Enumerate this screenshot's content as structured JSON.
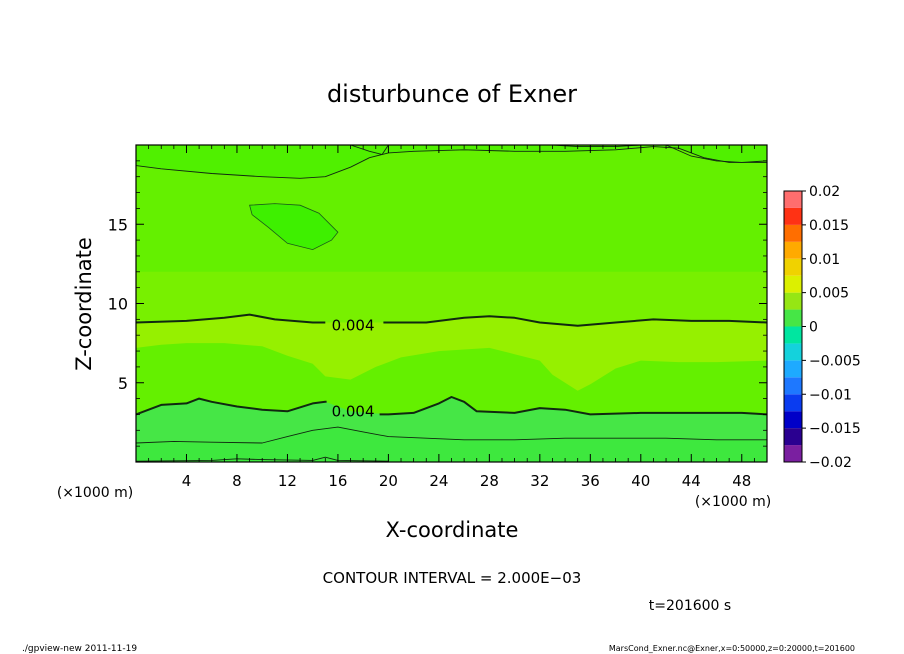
{
  "chart_data": {
    "type": "heatmap",
    "title": "disturbunce of Exner",
    "xlabel": "X-coordinate",
    "ylabel": "Z-coordinate",
    "x_unit_left": "(×1000 m)",
    "x_unit_right": "(×1000 m)",
    "xlim": [
      0,
      50
    ],
    "ylim": [
      0,
      20
    ],
    "x_ticks": [
      {
        "v": 4,
        "label": "4"
      },
      {
        "v": 8,
        "label": "8"
      },
      {
        "v": 12,
        "label": "12"
      },
      {
        "v": 16,
        "label": "16"
      },
      {
        "v": 20,
        "label": "20"
      },
      {
        "v": 24,
        "label": "24"
      },
      {
        "v": 28,
        "label": "28"
      },
      {
        "v": 32,
        "label": "32"
      },
      {
        "v": 36,
        "label": "36"
      },
      {
        "v": 40,
        "label": "40"
      },
      {
        "v": 44,
        "label": "44"
      },
      {
        "v": 48,
        "label": "48"
      }
    ],
    "y_ticks": [
      {
        "v": 5,
        "label": "5"
      },
      {
        "v": 10,
        "label": "10"
      },
      {
        "v": 15,
        "label": "15"
      }
    ],
    "colorbar": {
      "levels": [
        -0.02,
        -0.0175,
        -0.015,
        -0.0125,
        -0.01,
        -0.0075,
        -0.005,
        -0.0025,
        0,
        0.0025,
        0.005,
        0.0075,
        0.01,
        0.0125,
        0.015,
        0.0175,
        0.02
      ],
      "colors": [
        "#7a1fa0",
        "#2a0090",
        "#0000c8",
        "#0a3cf0",
        "#1e78ff",
        "#1eaaff",
        "#14d2dc",
        "#00e6a0",
        "#46e646",
        "#96e614",
        "#dcf000",
        "#f0d200",
        "#ffaa00",
        "#ff6e00",
        "#ff3214",
        "#ff6e6e",
        "#ffaaaa"
      ],
      "labels": [
        {
          "v": 0.02,
          "label": "0.02"
        },
        {
          "v": 0.015,
          "label": "0.015"
        },
        {
          "v": 0.01,
          "label": "0.01"
        },
        {
          "v": 0.005,
          "label": "0.005"
        },
        {
          "v": 0,
          "label": "0"
        },
        {
          "v": -0.005,
          "label": "−0.005"
        },
        {
          "v": -0.01,
          "label": "−0.01"
        },
        {
          "v": -0.015,
          "label": "−0.015"
        },
        {
          "v": -0.02,
          "label": "−0.02"
        }
      ]
    },
    "bands": [
      {
        "level": 0.0015,
        "color": "#46e646",
        "upper": [
          [
            0,
            1.2
          ],
          [
            3,
            1.3
          ],
          [
            6,
            1.25
          ],
          [
            10,
            1.2
          ],
          [
            12,
            1.6
          ],
          [
            14,
            2.0
          ],
          [
            16,
            2.2
          ],
          [
            18,
            1.9
          ],
          [
            20,
            1.6
          ],
          [
            23,
            1.5
          ],
          [
            26,
            1.4
          ],
          [
            30,
            1.4
          ],
          [
            34,
            1.5
          ],
          [
            38,
            1.5
          ],
          [
            42,
            1.5
          ],
          [
            46,
            1.4
          ],
          [
            50,
            1.4
          ]
        ]
      },
      {
        "level": 0.003,
        "color": "#64f000",
        "upper": [
          [
            0,
            3.0
          ],
          [
            2,
            3.6
          ],
          [
            4,
            3.7
          ],
          [
            5,
            4.0
          ],
          [
            6,
            3.8
          ],
          [
            8,
            3.5
          ],
          [
            10,
            3.3
          ],
          [
            12,
            3.2
          ],
          [
            14,
            3.7
          ],
          [
            15,
            3.8
          ],
          [
            17,
            3.2
          ],
          [
            20,
            3.0
          ],
          [
            22,
            3.1
          ],
          [
            24,
            3.7
          ],
          [
            25,
            4.1
          ],
          [
            26,
            3.8
          ],
          [
            27,
            3.2
          ],
          [
            30,
            3.1
          ],
          [
            32,
            3.4
          ],
          [
            34,
            3.3
          ],
          [
            36,
            3.0
          ],
          [
            40,
            3.1
          ],
          [
            44,
            3.1
          ],
          [
            48,
            3.1
          ],
          [
            50,
            3.0
          ]
        ]
      },
      {
        "level": 0.0055,
        "color": "#96f000",
        "upper": [
          [
            0,
            7.2
          ],
          [
            2,
            7.4
          ],
          [
            4,
            7.5
          ],
          [
            7,
            7.5
          ],
          [
            10,
            7.3
          ],
          [
            12,
            6.7
          ],
          [
            14,
            6.2
          ],
          [
            15,
            5.4
          ],
          [
            17,
            5.2
          ],
          [
            19,
            6.0
          ],
          [
            21,
            6.6
          ],
          [
            24,
            7.0
          ],
          [
            28,
            7.2
          ],
          [
            30,
            6.8
          ],
          [
            32,
            6.4
          ],
          [
            33,
            5.5
          ],
          [
            35,
            4.5
          ],
          [
            36,
            4.9
          ],
          [
            38,
            5.9
          ],
          [
            40,
            6.4
          ],
          [
            43,
            6.3
          ],
          [
            46,
            6.3
          ],
          [
            50,
            6.4
          ]
        ]
      },
      {
        "level": 0.0045,
        "color": "#78f000",
        "upper": [
          [
            0,
            8.8
          ],
          [
            4,
            8.9
          ],
          [
            7,
            9.1
          ],
          [
            9,
            9.3
          ],
          [
            11,
            9.0
          ],
          [
            14,
            8.8
          ],
          [
            17,
            8.8
          ],
          [
            20,
            8.8
          ],
          [
            23,
            8.8
          ],
          [
            26,
            9.1
          ],
          [
            28,
            9.2
          ],
          [
            30,
            9.1
          ],
          [
            32,
            8.8
          ],
          [
            35,
            8.6
          ],
          [
            38,
            8.8
          ],
          [
            41,
            9.0
          ],
          [
            44,
            8.9
          ],
          [
            47,
            8.9
          ],
          [
            50,
            8.8
          ]
        ]
      },
      {
        "level": 0.0035,
        "color": "#64f000",
        "upper": [
          [
            0,
            12.0
          ],
          [
            4,
            12.0
          ],
          [
            8,
            12.0
          ],
          [
            12,
            12.0
          ],
          [
            16,
            12.0
          ],
          [
            20,
            12.0
          ],
          [
            24,
            12.0
          ],
          [
            28,
            12.0
          ],
          [
            32,
            12.0
          ],
          [
            36,
            12.0
          ],
          [
            40,
            12.0
          ],
          [
            44,
            12.0
          ],
          [
            48,
            12.0
          ],
          [
            50,
            12.0
          ]
        ]
      },
      {
        "level": 0.0025,
        "color": "#50f000",
        "upper": [
          [
            0,
            18.7
          ],
          [
            2,
            18.5
          ],
          [
            6,
            18.2
          ],
          [
            10,
            18.0
          ],
          [
            13,
            17.9
          ],
          [
            15,
            18.0
          ],
          [
            17,
            18.6
          ],
          [
            18.5,
            19.2
          ],
          [
            20,
            19.5
          ],
          [
            22,
            19.6
          ],
          [
            26,
            19.7
          ],
          [
            30,
            19.6
          ],
          [
            34,
            19.6
          ],
          [
            38,
            19.7
          ],
          [
            41,
            19.9
          ],
          [
            43,
            19.8
          ],
          [
            45,
            19.2
          ],
          [
            47,
            18.9
          ],
          [
            50,
            18.9
          ]
        ]
      }
    ],
    "contours": [
      {
        "weight": "thin",
        "points": [
          [
            0,
            1.2
          ],
          [
            3,
            1.3
          ],
          [
            6,
            1.25
          ],
          [
            10,
            1.2
          ],
          [
            12,
            1.6
          ],
          [
            14,
            2.0
          ],
          [
            16,
            2.2
          ],
          [
            18,
            1.9
          ],
          [
            20,
            1.6
          ],
          [
            23,
            1.5
          ],
          [
            26,
            1.4
          ],
          [
            30,
            1.4
          ],
          [
            34,
            1.5
          ],
          [
            38,
            1.5
          ],
          [
            42,
            1.5
          ],
          [
            46,
            1.4
          ],
          [
            50,
            1.4
          ]
        ]
      },
      {
        "weight": "bold",
        "points": [
          [
            0,
            3.0
          ],
          [
            2,
            3.6
          ],
          [
            4,
            3.7
          ],
          [
            5,
            4.0
          ],
          [
            6,
            3.8
          ],
          [
            8,
            3.5
          ],
          [
            10,
            3.3
          ],
          [
            12,
            3.2
          ],
          [
            14,
            3.7
          ],
          [
            15,
            3.8
          ],
          [
            15.1,
            3.8
          ]
        ]
      },
      {
        "weight": "bold",
        "points": [
          [
            19.3,
            3.0
          ],
          [
            20,
            3.0
          ],
          [
            22,
            3.1
          ],
          [
            24,
            3.7
          ],
          [
            25,
            4.1
          ],
          [
            26,
            3.8
          ],
          [
            27,
            3.2
          ],
          [
            30,
            3.1
          ],
          [
            32,
            3.4
          ],
          [
            34,
            3.3
          ],
          [
            36,
            3.0
          ],
          [
            40,
            3.1
          ],
          [
            44,
            3.1
          ],
          [
            48,
            3.1
          ],
          [
            50,
            3.0
          ]
        ]
      },
      {
        "weight": "bold",
        "points": [
          [
            0,
            8.8
          ],
          [
            4,
            8.9
          ],
          [
            7,
            9.1
          ],
          [
            9,
            9.3
          ],
          [
            11,
            9.0
          ],
          [
            14,
            8.8
          ],
          [
            15,
            8.8
          ]
        ]
      },
      {
        "weight": "bold",
        "points": [
          [
            19.6,
            8.8
          ],
          [
            20,
            8.8
          ],
          [
            23,
            8.8
          ],
          [
            26,
            9.1
          ],
          [
            28,
            9.2
          ],
          [
            30,
            9.1
          ],
          [
            32,
            8.8
          ],
          [
            35,
            8.6
          ],
          [
            38,
            8.8
          ],
          [
            41,
            9.0
          ],
          [
            44,
            8.9
          ],
          [
            47,
            8.9
          ],
          [
            50,
            8.8
          ]
        ]
      },
      {
        "weight": "thin",
        "points": [
          [
            0,
            18.7
          ],
          [
            2,
            18.5
          ],
          [
            6,
            18.2
          ],
          [
            10,
            18.0
          ],
          [
            13,
            17.9
          ],
          [
            15,
            18.0
          ],
          [
            17,
            18.6
          ],
          [
            18.5,
            19.2
          ],
          [
            20,
            19.5
          ],
          [
            22,
            19.6
          ],
          [
            26,
            19.7
          ],
          [
            30,
            19.6
          ],
          [
            34,
            19.6
          ],
          [
            38,
            19.7
          ],
          [
            41,
            19.9
          ],
          [
            43,
            19.8
          ],
          [
            45,
            19.2
          ],
          [
            47,
            18.9
          ],
          [
            50,
            18.9
          ]
        ]
      },
      {
        "weight": "thin",
        "points": [
          [
            17,
            20
          ],
          [
            18.5,
            19.6
          ],
          [
            19.5,
            19.4
          ],
          [
            20,
            20
          ]
        ]
      },
      {
        "weight": "thin",
        "points": [
          [
            42,
            20
          ],
          [
            44,
            19.3
          ],
          [
            46,
            19.0
          ],
          [
            48,
            18.9
          ],
          [
            50,
            19.0
          ]
        ]
      },
      {
        "weight": "thin",
        "points": [
          [
            33,
            20
          ],
          [
            35,
            19.9
          ],
          [
            38,
            19.9
          ],
          [
            40,
            20
          ]
        ]
      },
      {
        "weight": "thin",
        "points": [
          [
            0,
            0.05
          ],
          [
            6,
            0.1
          ],
          [
            8,
            0.2
          ],
          [
            10,
            0.15
          ],
          [
            14,
            0.1
          ],
          [
            15,
            0.3
          ],
          [
            16,
            0.1
          ],
          [
            20,
            0.05
          ]
        ]
      }
    ],
    "blobs": [
      {
        "color": "#3ef000",
        "points": [
          [
            9,
            16.2
          ],
          [
            11,
            16.3
          ],
          [
            13,
            16.2
          ],
          [
            14.5,
            15.7
          ],
          [
            16,
            14.5
          ],
          [
            15.5,
            14.0
          ],
          [
            14,
            13.4
          ],
          [
            12,
            13.8
          ],
          [
            10.5,
            14.8
          ],
          [
            9.2,
            15.6
          ]
        ]
      }
    ],
    "contour_labels": [
      {
        "x": 17.2,
        "y": 8.6,
        "text": "0.004"
      },
      {
        "x": 17.2,
        "y": 3.2,
        "text": "0.004"
      }
    ]
  },
  "contour_interval": "CONTOUR INTERVAL = 2.000E−03",
  "time_label": "t=201600 s",
  "footer_left": "./gpview-new   2011-11-19",
  "footer_right": "MarsCond_Exner.nc@Exner,x=0:50000,z=0:20000,t=201600"
}
